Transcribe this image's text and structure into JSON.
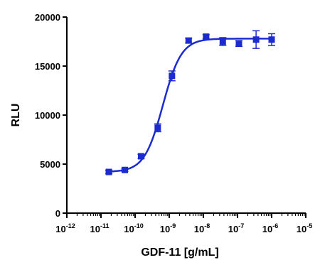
{
  "chart_data": {
    "type": "scatter",
    "title": "",
    "xlabel": "GDF-11 [g/mL]",
    "ylabel": "RLU",
    "x_scale": "log",
    "xlim": [
      1e-12,
      1e-05
    ],
    "ylim": [
      0,
      20000
    ],
    "x_ticks": [
      {
        "base": "10",
        "exp": "-12"
      },
      {
        "base": "10",
        "exp": "-11"
      },
      {
        "base": "10",
        "exp": "-10"
      },
      {
        "base": "10",
        "exp": "-9"
      },
      {
        "base": "10",
        "exp": "-8"
      },
      {
        "base": "10",
        "exp": "-7"
      },
      {
        "base": "10",
        "exp": "-6"
      },
      {
        "base": "10",
        "exp": "-5"
      }
    ],
    "y_ticks": [
      "0",
      "5000",
      "10000",
      "15000",
      "20000"
    ],
    "grid": false,
    "color": "#1b2bd0",
    "series": [
      {
        "x": [
          1.7e-11,
          5e-11,
          1.5e-10,
          4.6e-10,
          1.2e-09,
          3.7e-09,
          1.2e-08,
          3.7e-08,
          1.1e-07,
          3.5e-07,
          1e-06
        ],
        "y": [
          4200,
          4400,
          5800,
          8700,
          14000,
          17600,
          18000,
          17500,
          17300,
          17700,
          17700
        ],
        "error": [
          150,
          150,
          200,
          400,
          500,
          250,
          200,
          400,
          300,
          900,
          600
        ]
      }
    ],
    "fit": {
      "model": "4PL",
      "bottom": 4200,
      "top": 17800,
      "ec50": 6.5e-10,
      "hill": 1.6
    }
  }
}
